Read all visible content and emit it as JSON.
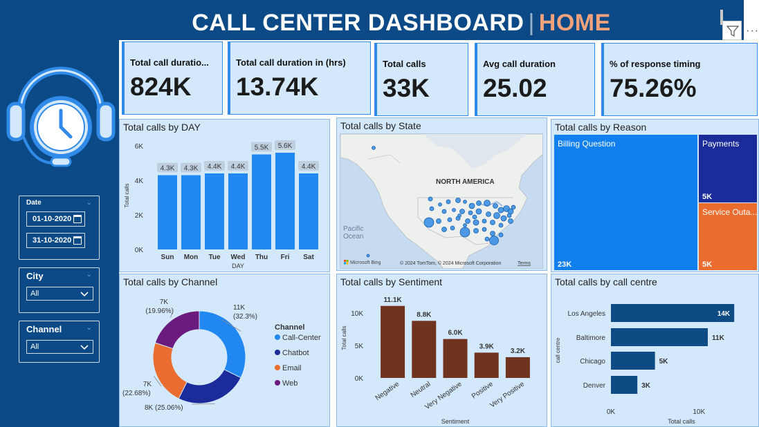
{
  "header": {
    "title_main": "CALL CENTER DASHBOARD",
    "title_sep": "|",
    "title_home": "HOME"
  },
  "colors": {
    "background": "#0b4a86",
    "panel": "#d4e8fb",
    "accent_blue": "#2188f2",
    "bar_brown": "#6f3320",
    "donut": [
      "#2188f2",
      "#1b2c9a",
      "#ea6c2f",
      "#6b1a7d"
    ],
    "treemap": [
      "#1180ee",
      "#1b2c9a",
      "#ea6c2f"
    ],
    "centre_bar": "#0e4b85"
  },
  "filters": {
    "date": {
      "label": "Date",
      "start": "01-10-2020",
      "end": "31-10-2020"
    },
    "city": {
      "label": "City",
      "value": "All"
    },
    "channel": {
      "label": "Channel",
      "value": "All"
    }
  },
  "kpis": [
    {
      "label": "Total call duratio...",
      "value": "824K"
    },
    {
      "label": "Total call duration in (hrs)",
      "value": "13.74K"
    },
    {
      "label": "Total calls",
      "value": "33K"
    },
    {
      "label": "Avg call duration",
      "value": "25.02"
    },
    {
      "label": "% of response timing",
      "value": "75.26%"
    }
  ],
  "panels": {
    "day": "Total calls by DAY",
    "state": "Total calls by State",
    "reason": "Total calls by Reason",
    "channel": "Total calls by Channel",
    "sentiment": "Total calls by Sentiment",
    "centre": "Total calls by call centre"
  },
  "map": {
    "region_label": "NORTH AMERICA",
    "ocean_label_1": "Pacific",
    "ocean_label_2": "Ocean",
    "brand": "Microsoft Bing",
    "copyright": "© 2024 TomTom, © 2024 Microsoft Corporation",
    "terms": "Terms"
  },
  "chart_data": [
    {
      "type": "bar",
      "title": "Total calls by DAY",
      "xlabel": "DAY",
      "ylabel": "Total calls",
      "categories": [
        "Sun",
        "Mon",
        "Tue",
        "Wed",
        "Thu",
        "Fri",
        "Sat"
      ],
      "values": [
        4300,
        4300,
        4400,
        4400,
        5500,
        5600,
        4400
      ],
      "data_labels": [
        "4.3K",
        "4.3K",
        "4.4K",
        "4.4K",
        "5.5K",
        "5.6K",
        "4.4K"
      ],
      "yticks": [
        "0K",
        "2K",
        "4K",
        "6K"
      ],
      "ylim": [
        0,
        6000
      ]
    },
    {
      "type": "treemap",
      "title": "Total calls by Reason",
      "items": [
        {
          "name": "Billing Question",
          "value": 23000,
          "label": "23K"
        },
        {
          "name": "Payments",
          "value": 5000,
          "label": "5K"
        },
        {
          "name": "Service Outa...",
          "value": 5000,
          "label": "5K"
        }
      ]
    },
    {
      "type": "pie",
      "title": "Total calls by Channel",
      "legend_title": "Channel",
      "slices": [
        {
          "name": "Call-Center",
          "value": 32.3,
          "label": "11K",
          "pct": "(32.3%)"
        },
        {
          "name": "Chatbot",
          "value": 25.06,
          "label": "8K (25.06%)",
          "pct": ""
        },
        {
          "name": "Email",
          "value": 22.68,
          "label": "7K",
          "pct": "(22.68%)"
        },
        {
          "name": "Web",
          "value": 19.96,
          "label": "7K",
          "pct": "(19.96%)"
        }
      ]
    },
    {
      "type": "bar",
      "title": "Total calls by Sentiment",
      "xlabel": "Sentiment",
      "ylabel": "Total calls",
      "categories": [
        "Negative",
        "Neutral",
        "Very Negative",
        "Positive",
        "Very Positive"
      ],
      "values": [
        11100,
        8800,
        6000,
        3900,
        3200
      ],
      "data_labels": [
        "11.1K",
        "8.8K",
        "6.0K",
        "3.9K",
        "3.2K"
      ],
      "yticks": [
        "0K",
        "5K",
        "10K"
      ],
      "ylim": [
        0,
        11500
      ]
    },
    {
      "type": "bar",
      "orientation": "horizontal",
      "title": "Total calls by call centre",
      "xlabel": "Total calls",
      "ylabel": "call centre",
      "categories": [
        "Los Angeles",
        "Baltimore",
        "Chicago",
        "Denver"
      ],
      "values": [
        14000,
        11000,
        5000,
        3000
      ],
      "data_labels": [
        "14K",
        "11K",
        "5K",
        "3K"
      ],
      "xticks": [
        "0K",
        "10K"
      ],
      "xlim": [
        0,
        16500
      ]
    }
  ]
}
